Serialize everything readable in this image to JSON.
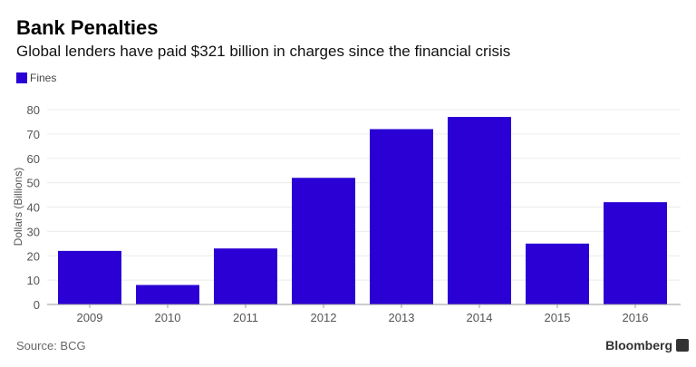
{
  "chart_data": {
    "type": "bar",
    "title": "Bank Penalties",
    "subtitle": "Global lenders have paid $321 billion in charges since the financial crisis",
    "categories": [
      "2009",
      "2010",
      "2011",
      "2012",
      "2013",
      "2014",
      "2015",
      "2016"
    ],
    "series": [
      {
        "name": "Fines",
        "values": [
          22,
          8,
          23,
          52,
          72,
          77,
          25,
          42
        ],
        "color": "#2a00d4"
      }
    ],
    "xlabel": "",
    "ylabel": "Dollars (Billions)",
    "ylim": [
      0,
      80
    ],
    "yticks": [
      0,
      10,
      20,
      30,
      40,
      50,
      60,
      70,
      80
    ],
    "grid": true,
    "legend_position": "top-left"
  },
  "footer": {
    "source": "Source: BCG",
    "brand": "Bloomberg"
  }
}
